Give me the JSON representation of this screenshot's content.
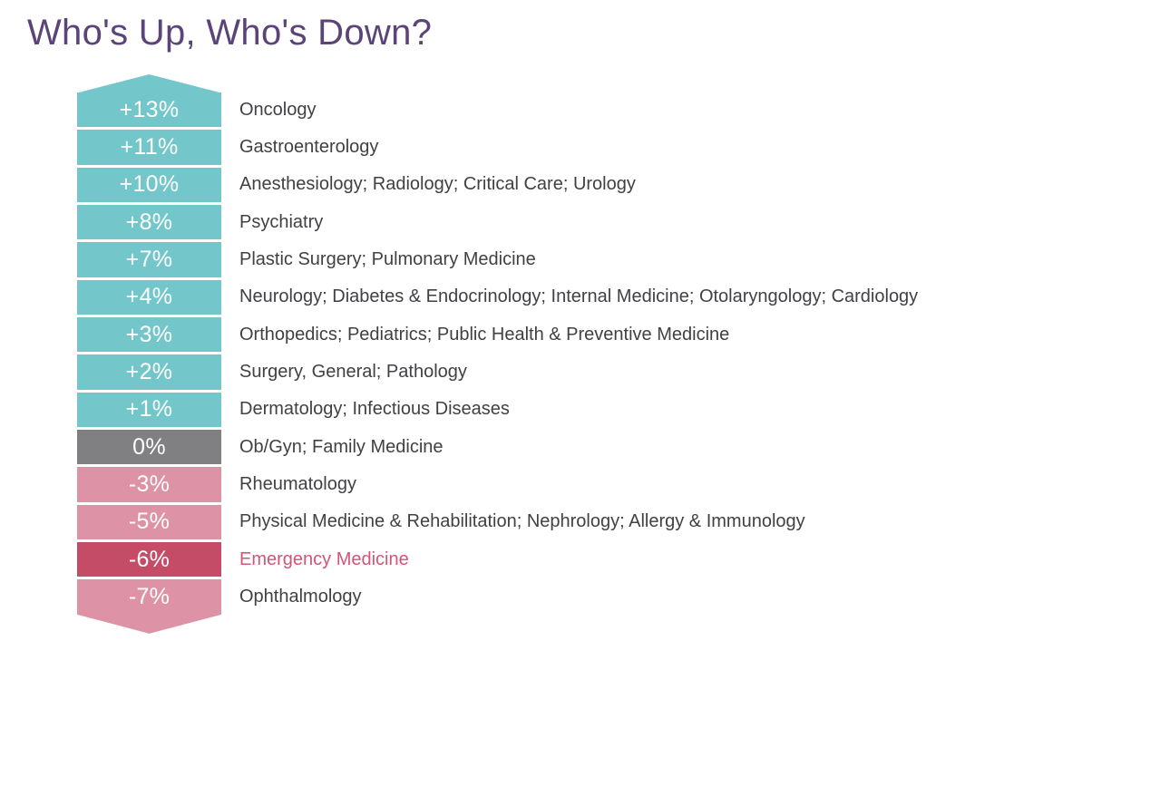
{
  "title": {
    "text": "Who's Up, Who's Down?",
    "color": "#5a4478"
  },
  "chart_data": {
    "type": "bar",
    "title": "Who's Up, Who's Down?",
    "unit": "percent change",
    "orientation": "vertical stacked arrow list, positive at top, negative at bottom",
    "legend": "none",
    "palette": {
      "positive": "#73c6ca",
      "zero": "#808083",
      "negative": "#de92a5",
      "negative_highlight": "#c54c67",
      "highlight_text": "#d15677",
      "label_text": "#414045",
      "value_text": "#ffffff"
    },
    "rows": [
      {
        "value_label": "+13%",
        "change_pct": 13,
        "specialties": "Oncology",
        "tone": "positive",
        "highlight": false
      },
      {
        "value_label": "+11%",
        "change_pct": 11,
        "specialties": "Gastroenterology",
        "tone": "positive",
        "highlight": false
      },
      {
        "value_label": "+10%",
        "change_pct": 10,
        "specialties": "Anesthesiology; Radiology; Critical Care; Urology",
        "tone": "positive",
        "highlight": false
      },
      {
        "value_label": "+8%",
        "change_pct": 8,
        "specialties": "Psychiatry",
        "tone": "positive",
        "highlight": false
      },
      {
        "value_label": "+7%",
        "change_pct": 7,
        "specialties": "Plastic Surgery; Pulmonary Medicine",
        "tone": "positive",
        "highlight": false
      },
      {
        "value_label": "+4%",
        "change_pct": 4,
        "specialties": "Neurology; Diabetes & Endocrinology; Internal Medicine; Otolaryngology; Cardiology",
        "tone": "positive",
        "highlight": false
      },
      {
        "value_label": "+3%",
        "change_pct": 3,
        "specialties": "Orthopedics; Pediatrics; Public Health & Preventive Medicine",
        "tone": "positive",
        "highlight": false
      },
      {
        "value_label": "+2%",
        "change_pct": 2,
        "specialties": "Surgery, General; Pathology",
        "tone": "positive",
        "highlight": false
      },
      {
        "value_label": "+1%",
        "change_pct": 1,
        "specialties": "Dermatology; Infectious Diseases",
        "tone": "positive",
        "highlight": false
      },
      {
        "value_label": "0%",
        "change_pct": 0,
        "specialties": "Ob/Gyn; Family Medicine",
        "tone": "zero",
        "highlight": false
      },
      {
        "value_label": "-3%",
        "change_pct": -3,
        "specialties": "Rheumatology",
        "tone": "negative",
        "highlight": false
      },
      {
        "value_label": "-5%",
        "change_pct": -5,
        "specialties": "Physical Medicine & Rehabilitation; Nephrology; Allergy & Immunology",
        "tone": "negative",
        "highlight": false
      },
      {
        "value_label": "-6%",
        "change_pct": -6,
        "specialties": "Emergency Medicine",
        "tone": "negative_highlight",
        "highlight": true
      },
      {
        "value_label": "-7%",
        "change_pct": -7,
        "specialties": "Ophthalmology",
        "tone": "negative",
        "highlight": false
      }
    ]
  }
}
